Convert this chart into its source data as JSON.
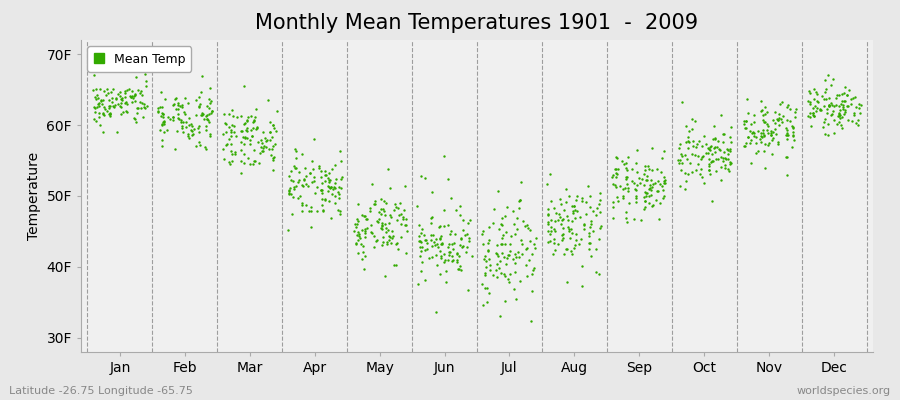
{
  "title": "Monthly Mean Temperatures 1901  -  2009",
  "ylabel": "Temperature",
  "xlabel_labels": [
    "Jan",
    "Feb",
    "Mar",
    "Apr",
    "May",
    "Jun",
    "Jul",
    "Aug",
    "Sep",
    "Oct",
    "Nov",
    "Dec"
  ],
  "ytick_labels": [
    "30F",
    "40F",
    "50F",
    "60F",
    "70F"
  ],
  "ytick_values": [
    30,
    40,
    50,
    60,
    70
  ],
  "ylim": [
    28,
    72
  ],
  "figure_bg_color": "#e8e8e8",
  "plot_bg_color": "#f0f0f0",
  "dot_color": "#33aa00",
  "dot_size": 3,
  "legend_label": "Mean Temp",
  "subtitle": "Latitude -26.75 Longitude -65.75",
  "watermark": "worldspecies.org",
  "title_fontsize": 15,
  "label_fontsize": 10,
  "monthly_mean_temps_F": [
    63.0,
    61.0,
    58.0,
    51.5,
    46.0,
    43.0,
    42.5,
    46.5,
    51.5,
    56.0,
    59.5,
    62.5
  ],
  "monthly_std_F": [
    1.5,
    1.8,
    2.0,
    2.2,
    2.5,
    2.8,
    3.0,
    2.5,
    2.2,
    2.0,
    1.8,
    1.5
  ],
  "monthly_extra_std_F": [
    0.5,
    0.8,
    1.0,
    1.5,
    2.0,
    3.0,
    3.5,
    2.5,
    1.5,
    1.0,
    0.8,
    0.5
  ],
  "n_years": 109
}
